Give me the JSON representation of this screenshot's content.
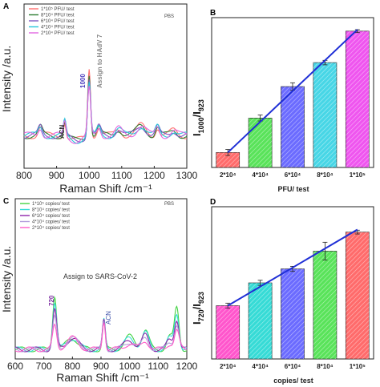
{
  "chart_data": [
    {
      "panel": "A",
      "type": "line",
      "title": "",
      "xlabel": "Raman Shift /cm⁻¹",
      "ylabel": "Intensity /a.u.",
      "xlim": [
        800,
        1300
      ],
      "xticks": [
        800,
        900,
        1000,
        1100,
        1200,
        1300
      ],
      "legend_title": "PBS",
      "legend_position": "top-right",
      "series": [
        {
          "name": "1*10⁵ PFU/ test",
          "color": "#ff7070"
        },
        {
          "name": "8*10⁴ PFU/ test",
          "color": "#2e7d32"
        },
        {
          "name": "6*10⁴ PFU/ test",
          "color": "#7e57c2"
        },
        {
          "name": "4*10⁴ PFU/ test",
          "color": "#26c6da"
        },
        {
          "name": "2*10⁴ PFU/ test",
          "color": "#e066e0"
        }
      ],
      "annotations": [
        {
          "text": "ACN",
          "x": 925
        },
        {
          "text": "1000",
          "x": 1000
        },
        {
          "text": "Assign to HAdV 7",
          "x": 1020
        }
      ]
    },
    {
      "panel": "B",
      "type": "bar",
      "title": "",
      "xlabel": "PFU/ test",
      "ylabel": "I1000/I923",
      "ylabel_main": "I",
      "ylabel_sub1": "1000",
      "ylabel_slash": "/I",
      "ylabel_sub2": "923",
      "categories": [
        "2*10⁴",
        "4*10⁴",
        "6*10⁴",
        "8*10⁴",
        "1*10⁵"
      ],
      "values": [
        0.1,
        0.33,
        0.54,
        0.7,
        0.91
      ],
      "errors": [
        0.02,
        0.02,
        0.025,
        0.015,
        0.01
      ],
      "ylim": [
        0,
        1
      ],
      "colors": [
        "#ff6b6b",
        "#59e35a",
        "#6b6bff",
        "#47d6e6",
        "#ef55ef"
      ],
      "fit_line": {
        "x": [
          0,
          4
        ],
        "y": [
          0.1,
          0.92
        ]
      }
    },
    {
      "panel": "C",
      "type": "line",
      "title": "",
      "xlabel": "Raman Shift /cm⁻¹",
      "ylabel": "Intensity /a.u.",
      "xlim": [
        600,
        1200
      ],
      "xticks": [
        600,
        700,
        800,
        900,
        1000,
        1100,
        1200
      ],
      "legend_title": "PBS",
      "legend_position": "top-left",
      "series": [
        {
          "name": "1*10⁵ copies/ test",
          "color": "#44d444"
        },
        {
          "name": "8*10⁴ copies/ test",
          "color": "#36dbd6"
        },
        {
          "name": "6*10⁴ copies/ test",
          "color": "#8e24aa"
        },
        {
          "name": "4*10⁴ copies/ test",
          "color": "#b39ddb"
        },
        {
          "name": "2*10⁴ copies/ test",
          "color": "#ff5cc8"
        }
      ],
      "annotations": [
        {
          "text": "720",
          "x": 735
        },
        {
          "text": "Assign to SARS-CoV-2",
          "x": 790
        },
        {
          "text": "ACN",
          "x": 910
        }
      ]
    },
    {
      "panel": "D",
      "type": "bar",
      "title": "",
      "xlabel": "copies/ test",
      "ylabel": "I720/I923",
      "ylabel_main": "I",
      "ylabel_sub1": "720",
      "ylabel_slash": "/I",
      "ylabel_sub2": "923",
      "categories": [
        "2*10⁴",
        "4*10⁴",
        "6*10⁴",
        "8*10⁴",
        "1*10⁵"
      ],
      "values": [
        0.42,
        0.6,
        0.71,
        0.85,
        1.0
      ],
      "errors": [
        0.02,
        0.02,
        0.02,
        0.07,
        0.015
      ],
      "ylim": [
        0,
        1.2
      ],
      "colors": [
        "#ff55cc",
        "#36dbd6",
        "#6b6bff",
        "#59e35a",
        "#ff6b6b"
      ],
      "fit_line": {
        "x": [
          0,
          4
        ],
        "y": [
          0.42,
          1.02
        ]
      }
    }
  ]
}
